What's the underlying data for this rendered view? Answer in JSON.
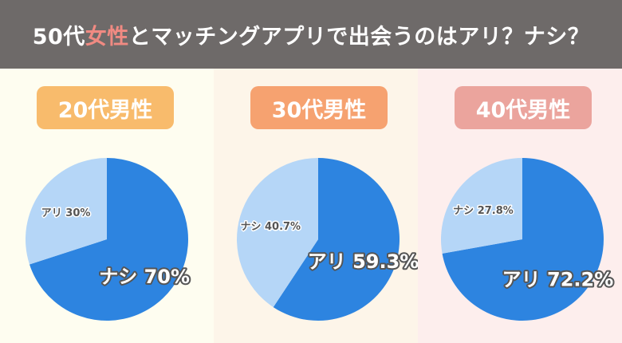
{
  "header": {
    "title_pre": "50代",
    "title_highlight": "女性",
    "title_post": "とマッチングアプリで出会うのはアリ？ナシ？"
  },
  "colors": {
    "header_bg": "#6e6a69",
    "highlight": "#f08a82",
    "pie_dark": "#2d84e0",
    "pie_light": "#b5d6f7",
    "label_outline": "#555555"
  },
  "chart_data": [
    {
      "type": "pie",
      "title": "20代男性",
      "panel_bg": "#fefdf0",
      "badge_color": "#f8bb6c",
      "slices": [
        {
          "label": "ナシ",
          "value": 70,
          "display": "ナシ  70%",
          "color": "#2d84e0"
        },
        {
          "label": "アリ",
          "value": 30,
          "display": "アリ  30%",
          "color": "#b5d6f7"
        }
      ]
    },
    {
      "type": "pie",
      "title": "30代男性",
      "panel_bg": "#fdf5e9",
      "badge_color": "#f6a270",
      "slices": [
        {
          "label": "アリ",
          "value": 59.3,
          "display": "アリ  59.3%",
          "color": "#2d84e0"
        },
        {
          "label": "ナシ",
          "value": 40.7,
          "display": "ナシ  40.7%",
          "color": "#b5d6f7"
        }
      ]
    },
    {
      "type": "pie",
      "title": "40代男性",
      "panel_bg": "#fdeeed",
      "badge_color": "#eba49d",
      "slices": [
        {
          "label": "アリ",
          "value": 72.2,
          "display": "アリ  72.2%",
          "color": "#2d84e0"
        },
        {
          "label": "ナシ",
          "value": 27.8,
          "display": "ナシ  27.8%",
          "color": "#b5d6f7"
        }
      ]
    }
  ]
}
